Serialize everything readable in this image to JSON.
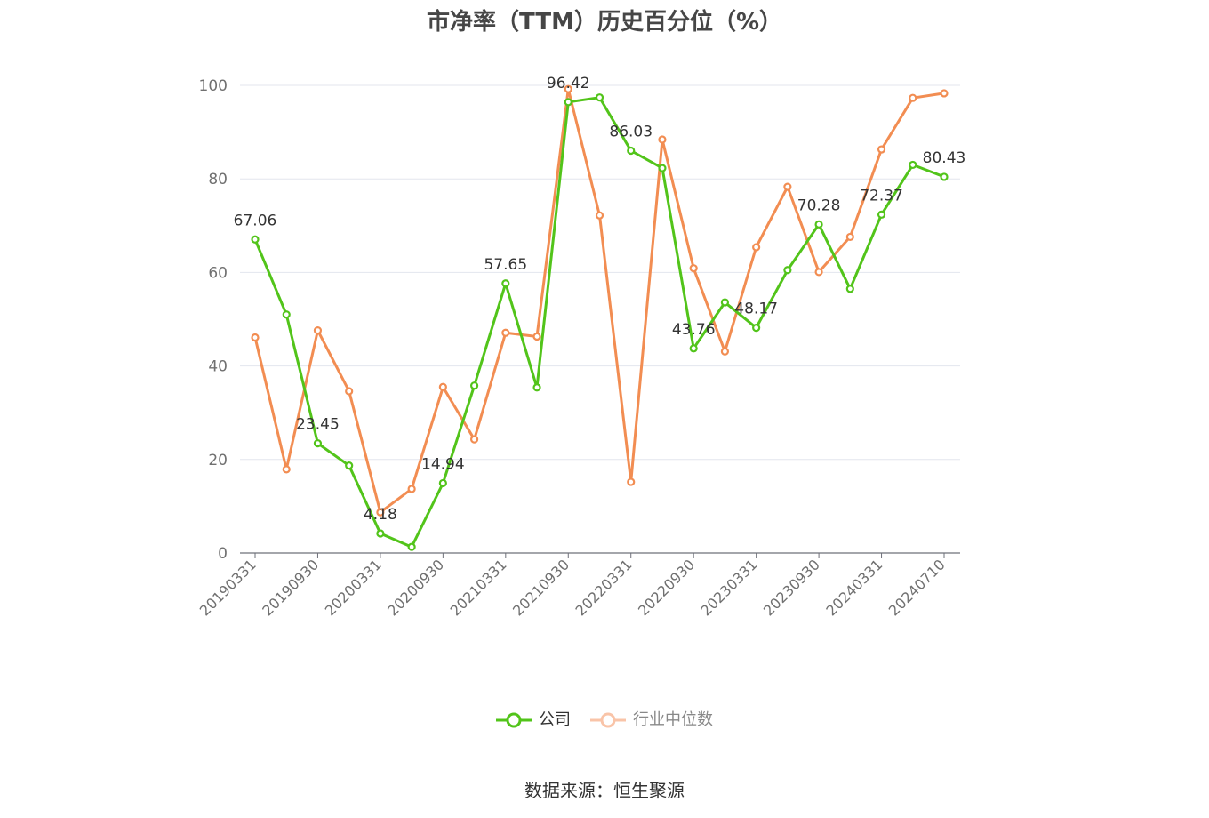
{
  "chart_data": {
    "type": "line",
    "title": "市净率（TTM）历史百分位（%）",
    "xlabel": "",
    "ylabel": "",
    "ylim": [
      0,
      100
    ],
    "yticks": [
      0,
      20,
      40,
      60,
      80,
      100
    ],
    "grid": true,
    "legend_position": "bottom",
    "x": [
      "20190331",
      "20190630",
      "20190930",
      "20191231",
      "20200331",
      "20200630",
      "20200930",
      "20201231",
      "20210331",
      "20210630",
      "20210930",
      "20211231",
      "20220331",
      "20220630",
      "20220930",
      "20221231",
      "20230331",
      "20230630",
      "20230930",
      "20231231",
      "20240331",
      "20240630",
      "20240710"
    ],
    "x_tick_labels": [
      "20190331",
      "20190930",
      "20200331",
      "20200930",
      "20210331",
      "20210930",
      "20220331",
      "20220930",
      "20230331",
      "20230930",
      "20240331",
      "20240710"
    ],
    "series": [
      {
        "name": "公司",
        "color": "#52c41a",
        "values": [
          67.06,
          51.0,
          23.45,
          18.7,
          4.18,
          1.3,
          14.94,
          35.8,
          57.65,
          35.4,
          96.42,
          97.4,
          86.03,
          82.3,
          43.76,
          53.6,
          48.17,
          60.5,
          70.28,
          56.5,
          72.37,
          83.0,
          80.43
        ],
        "labels": {
          "0": "67.06",
          "2": "23.45",
          "4": "4.18",
          "6": "14.94",
          "8": "57.65",
          "10": "96.42",
          "12": "86.03",
          "14": "43.76",
          "16": "48.17",
          "18": "70.28",
          "20": "72.37",
          "22": "80.43"
        }
      },
      {
        "name": "行业中位数",
        "color": "#f28d52",
        "values": [
          46.1,
          17.9,
          47.6,
          34.6,
          8.7,
          13.7,
          35.5,
          24.3,
          47.1,
          46.3,
          99.2,
          72.2,
          15.2,
          88.4,
          60.9,
          43.1,
          65.4,
          78.3,
          60.1,
          67.6,
          86.3,
          97.3,
          98.3
        ]
      }
    ]
  },
  "legend": [
    {
      "label": "公司",
      "color": "#52c41a",
      "active": true
    },
    {
      "label": "行业中位数",
      "color": "#f28d52",
      "active": false,
      "faded_color": "#f9c4a8"
    }
  ],
  "source": "数据来源：恒生聚源"
}
